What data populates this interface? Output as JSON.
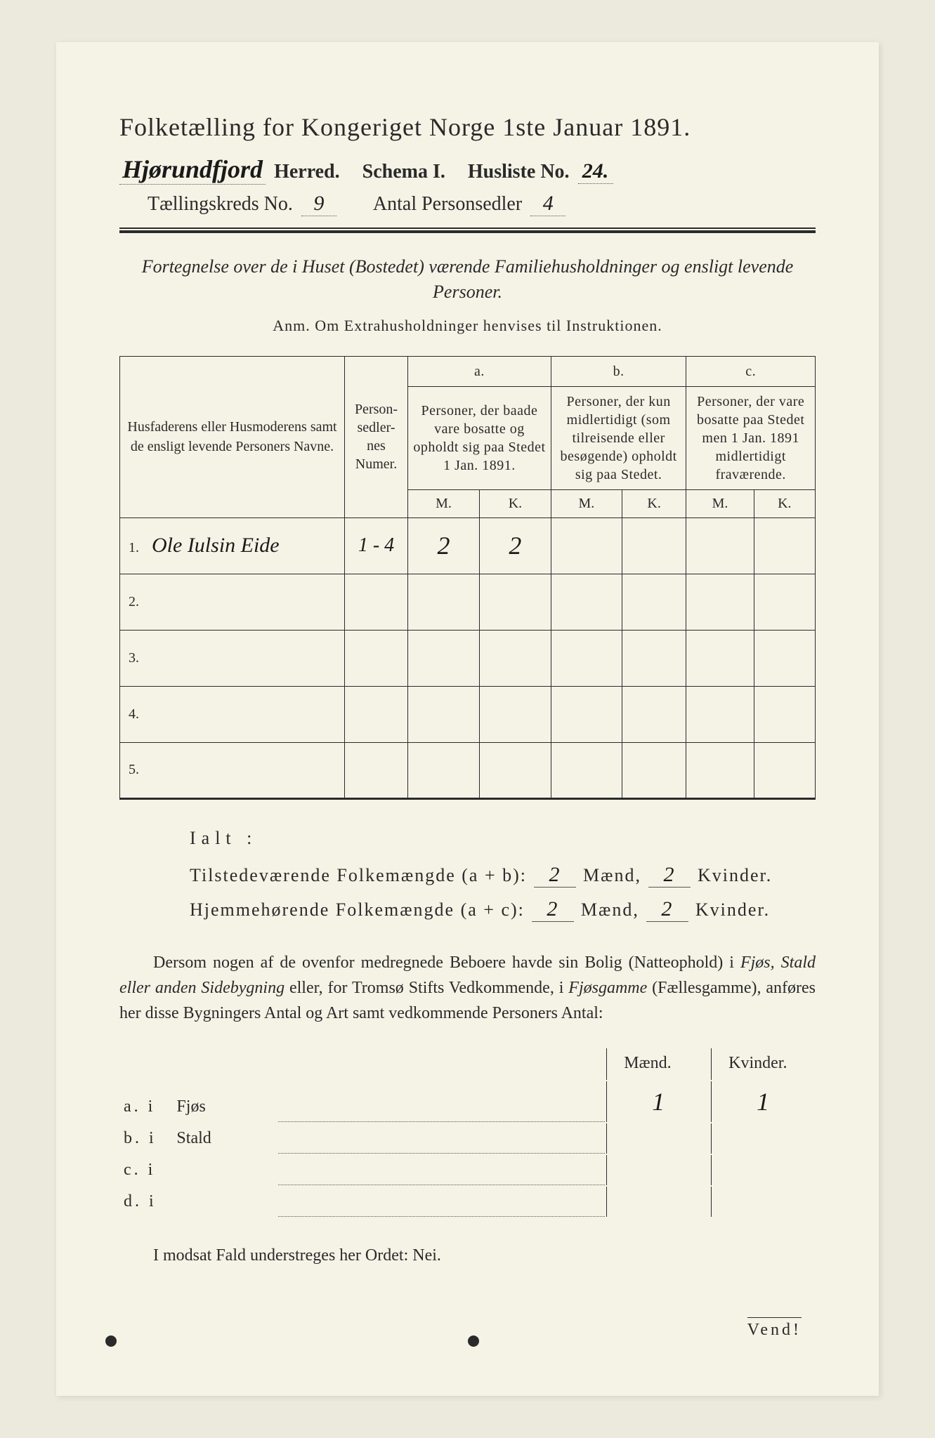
{
  "title": "Folketælling for Kongeriget Norge 1ste Januar 1891.",
  "header": {
    "herred_hw": "Hjørundfjord",
    "herred_label": "Herred.",
    "schema_label": "Schema I.",
    "husliste_label": "Husliste No.",
    "husliste_hw": "24.",
    "kreds_label": "Tællingskreds No.",
    "kreds_hw": "9",
    "antal_label": "Antal Personsedler",
    "antal_hw": "4"
  },
  "subtitle": "Fortegnelse over de i Huset (Bostedet) værende Familiehusholdninger og ensligt levende Personer.",
  "anm": "Anm. Om Extrahusholdninger henvises til Instruktionen.",
  "table": {
    "col_name": "Husfaderens eller Husmoderens samt de ensligt levende Personers Navne.",
    "col_num": "Person-sedler-nes Numer.",
    "col_a_top": "a.",
    "col_a": "Personer, der baade vare bosatte og opholdt sig paa Stedet 1 Jan. 1891.",
    "col_b_top": "b.",
    "col_b": "Personer, der kun midlertidigt (som tilreisende eller besøgende) opholdt sig paa Stedet.",
    "col_c_top": "c.",
    "col_c": "Personer, der vare bosatte paa Stedet men 1 Jan. 1891 midlertidigt fraværende.",
    "M": "M.",
    "K": "K.",
    "rows": [
      {
        "n": "1.",
        "name": "Ole Iulsin Eide",
        "num": "1 - 4",
        "aM": "2",
        "aK": "2",
        "bM": "",
        "bK": "",
        "cM": "",
        "cK": ""
      },
      {
        "n": "2.",
        "name": "",
        "num": "",
        "aM": "",
        "aK": "",
        "bM": "",
        "bK": "",
        "cM": "",
        "cK": ""
      },
      {
        "n": "3.",
        "name": "",
        "num": "",
        "aM": "",
        "aK": "",
        "bM": "",
        "bK": "",
        "cM": "",
        "cK": ""
      },
      {
        "n": "4.",
        "name": "",
        "num": "",
        "aM": "",
        "aK": "",
        "bM": "",
        "bK": "",
        "cM": "",
        "cK": ""
      },
      {
        "n": "5.",
        "name": "",
        "num": "",
        "aM": "",
        "aK": "",
        "bM": "",
        "bK": "",
        "cM": "",
        "cK": ""
      }
    ]
  },
  "ialt": {
    "title": "Ialt :",
    "line1a": "Tilstedeværende Folkemængde (a + b):",
    "line1_m": "2",
    "line1_mlabel": "Mænd,",
    "line1_k": "2",
    "line1_klabel": "Kvinder.",
    "line2a": "Hjemmehørende Folkemængde (a + c):",
    "line2_m": "2",
    "line2_k": "2"
  },
  "para": {
    "p1": "Dersom nogen af de ovenfor medregnede Beboere havde sin Bolig (Natteophold) i ",
    "it1": "Fjøs, Stald eller anden Sidebygning",
    "p2": " eller, for Tromsø Stifts Vedkommende, i ",
    "it2": "Fjøsgamme",
    "p3": " (Fællesgamme), anføres her disse Bygningers Antal og Art samt vedkommende Personers Antal:"
  },
  "bottom": {
    "head_m": "Mænd.",
    "head_k": "Kvinder.",
    "rows": [
      {
        "label": "a. i",
        "type": "Fjøs",
        "m": "1",
        "k": "1"
      },
      {
        "label": "b. i",
        "type": "Stald",
        "m": "",
        "k": ""
      },
      {
        "label": "c. i",
        "type": "",
        "m": "",
        "k": ""
      },
      {
        "label": "d. i",
        "type": "",
        "m": "",
        "k": ""
      }
    ]
  },
  "nei": "I modsat Fald understreges her Ordet: Nei.",
  "vend": "Vend!"
}
